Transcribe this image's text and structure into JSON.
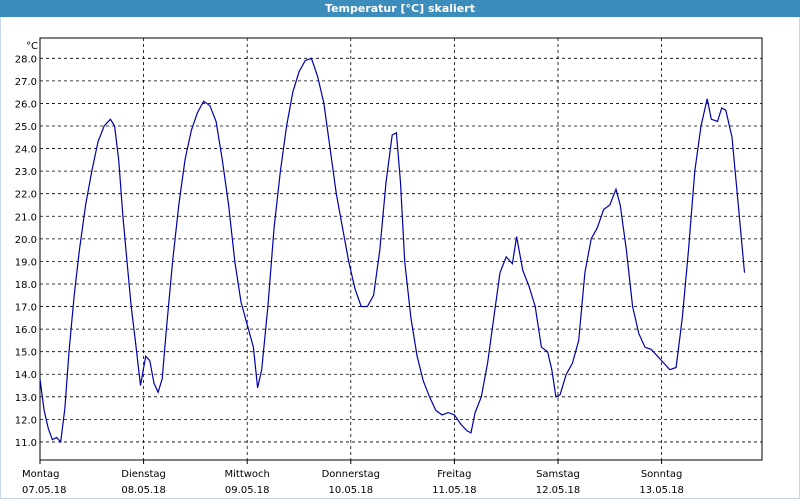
{
  "window": {
    "title": "Temperatur [°C] skaliert"
  },
  "chart_data": {
    "type": "line",
    "title": "Temperatur [°C] skaliert",
    "ylabel": "°C",
    "xlabel": "",
    "ylim": [
      10.2,
      28.9
    ],
    "yticks": [
      11.0,
      12.0,
      13.0,
      14.0,
      15.0,
      16.0,
      17.0,
      18.0,
      19.0,
      20.0,
      21.0,
      22.0,
      23.0,
      24.0,
      25.0,
      26.0,
      27.0,
      28.0
    ],
    "grid": true,
    "line_color": "#0000aa",
    "x_is_days_from_start": true,
    "day_labels": [
      {
        "weekday": "Montag",
        "date": "07.05.18"
      },
      {
        "weekday": "Dienstag",
        "date": "08.05.18"
      },
      {
        "weekday": "Mittwoch",
        "date": "09.05.18"
      },
      {
        "weekday": "Donnerstag",
        "date": "10.05.18"
      },
      {
        "weekday": "Freitag",
        "date": "11.05.18"
      },
      {
        "weekday": "Samstag",
        "date": "12.05.18"
      },
      {
        "weekday": "Sonntag",
        "date": "13.05.18"
      }
    ],
    "x_range_days": [
      0,
      7.0
    ],
    "series": [
      {
        "name": "",
        "points": [
          [
            0.0,
            13.8
          ],
          [
            0.04,
            12.4
          ],
          [
            0.08,
            11.6
          ],
          [
            0.12,
            11.1
          ],
          [
            0.16,
            11.2
          ],
          [
            0.2,
            11.0
          ],
          [
            0.24,
            12.5
          ],
          [
            0.28,
            15.0
          ],
          [
            0.33,
            17.5
          ],
          [
            0.38,
            19.5
          ],
          [
            0.44,
            21.5
          ],
          [
            0.5,
            23.0
          ],
          [
            0.56,
            24.3
          ],
          [
            0.62,
            25.0
          ],
          [
            0.68,
            25.3
          ],
          [
            0.72,
            25.0
          ],
          [
            0.76,
            23.5
          ],
          [
            0.8,
            21.0
          ],
          [
            0.84,
            19.0
          ],
          [
            0.88,
            17.0
          ],
          [
            0.92,
            15.5
          ],
          [
            0.97,
            13.5
          ],
          [
            1.02,
            14.8
          ],
          [
            1.06,
            14.6
          ],
          [
            1.1,
            13.6
          ],
          [
            1.14,
            13.2
          ],
          [
            1.18,
            13.8
          ],
          [
            1.22,
            16.0
          ],
          [
            1.28,
            19.0
          ],
          [
            1.34,
            21.5
          ],
          [
            1.4,
            23.5
          ],
          [
            1.46,
            24.8
          ],
          [
            1.52,
            25.6
          ],
          [
            1.58,
            26.1
          ],
          [
            1.64,
            25.9
          ],
          [
            1.7,
            25.2
          ],
          [
            1.76,
            23.5
          ],
          [
            1.82,
            21.5
          ],
          [
            1.88,
            19.0
          ],
          [
            1.94,
            17.2
          ],
          [
            2.0,
            16.2
          ],
          [
            2.06,
            15.2
          ],
          [
            2.1,
            13.4
          ],
          [
            2.14,
            14.2
          ],
          [
            2.2,
            17.0
          ],
          [
            2.26,
            20.5
          ],
          [
            2.32,
            23.0
          ],
          [
            2.38,
            25.0
          ],
          [
            2.44,
            26.5
          ],
          [
            2.5,
            27.4
          ],
          [
            2.56,
            27.9
          ],
          [
            2.62,
            28.0
          ],
          [
            2.68,
            27.2
          ],
          [
            2.74,
            26.0
          ],
          [
            2.8,
            24.0
          ],
          [
            2.86,
            22.0
          ],
          [
            2.92,
            20.5
          ],
          [
            2.98,
            19.0
          ],
          [
            3.04,
            17.8
          ],
          [
            3.1,
            17.0
          ],
          [
            3.16,
            17.0
          ],
          [
            3.22,
            17.5
          ],
          [
            3.28,
            19.5
          ],
          [
            3.34,
            22.5
          ],
          [
            3.4,
            24.6
          ],
          [
            3.44,
            24.7
          ],
          [
            3.48,
            22.5
          ],
          [
            3.52,
            19.0
          ],
          [
            3.58,
            16.5
          ],
          [
            3.64,
            14.8
          ],
          [
            3.7,
            13.7
          ],
          [
            3.76,
            13.0
          ],
          [
            3.82,
            12.4
          ],
          [
            3.88,
            12.2
          ],
          [
            3.94,
            12.3
          ],
          [
            4.0,
            12.2
          ],
          [
            4.06,
            11.8
          ],
          [
            4.12,
            11.5
          ],
          [
            4.16,
            11.4
          ],
          [
            4.2,
            12.3
          ],
          [
            4.26,
            13.0
          ],
          [
            4.32,
            14.5
          ],
          [
            4.38,
            16.5
          ],
          [
            4.44,
            18.5
          ],
          [
            4.5,
            19.2
          ],
          [
            4.56,
            18.9
          ],
          [
            4.6,
            20.1
          ],
          [
            4.66,
            18.6
          ],
          [
            4.72,
            17.9
          ],
          [
            4.78,
            17.0
          ],
          [
            4.84,
            15.2
          ],
          [
            4.9,
            15.0
          ],
          [
            4.94,
            14.2
          ],
          [
            4.98,
            13.0
          ],
          [
            5.02,
            13.1
          ],
          [
            5.08,
            14.0
          ],
          [
            5.14,
            14.5
          ],
          [
            5.2,
            15.5
          ],
          [
            5.26,
            18.5
          ],
          [
            5.32,
            20.0
          ],
          [
            5.38,
            20.5
          ],
          [
            5.44,
            21.3
          ],
          [
            5.5,
            21.5
          ],
          [
            5.56,
            22.2
          ],
          [
            5.6,
            21.5
          ],
          [
            5.66,
            19.5
          ],
          [
            5.72,
            17.0
          ],
          [
            5.78,
            15.8
          ],
          [
            5.84,
            15.2
          ],
          [
            5.9,
            15.1
          ],
          [
            5.96,
            14.8
          ],
          [
            6.02,
            14.5
          ],
          [
            6.08,
            14.2
          ],
          [
            6.14,
            14.3
          ],
          [
            6.2,
            16.5
          ],
          [
            6.26,
            19.5
          ],
          [
            6.32,
            23.0
          ],
          [
            6.38,
            25.0
          ],
          [
            6.44,
            26.2
          ],
          [
            6.48,
            25.3
          ],
          [
            6.54,
            25.2
          ],
          [
            6.58,
            25.8
          ],
          [
            6.62,
            25.7
          ],
          [
            6.68,
            24.5
          ],
          [
            6.74,
            21.5
          ],
          [
            6.8,
            18.5
          ]
        ]
      }
    ]
  }
}
